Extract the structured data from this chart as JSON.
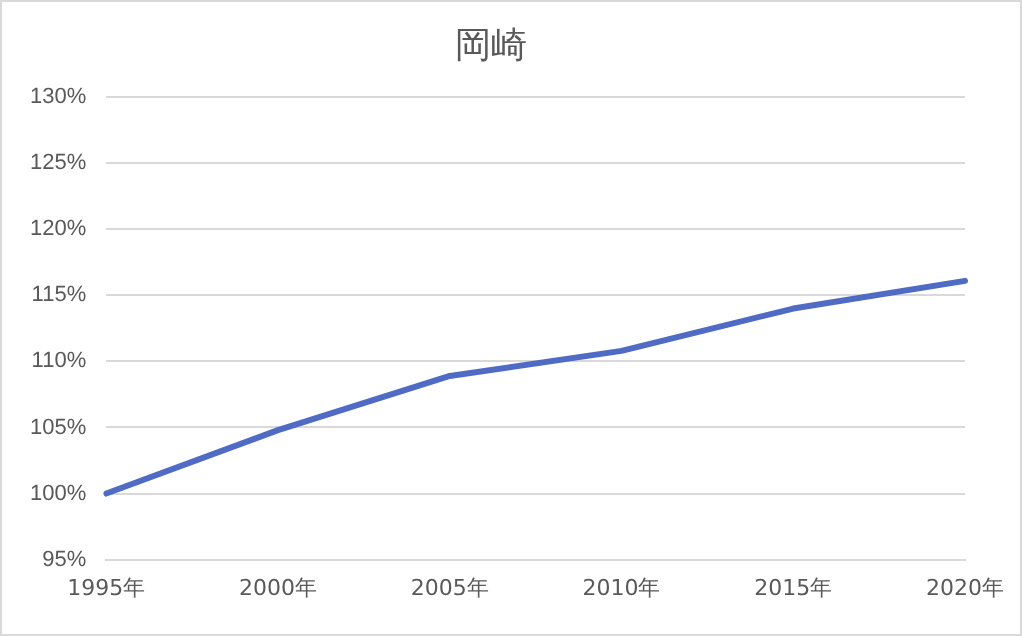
{
  "chart_data": {
    "type": "line",
    "title": "岡崎",
    "categories": [
      "1995年",
      "2000年",
      "2005年",
      "2010年",
      "2015年",
      "2020年"
    ],
    "series": [
      {
        "color": "#4f6bc4",
        "values": [
          100,
          104.8,
          108.9,
          110.8,
          114,
          116.1
        ]
      }
    ],
    "ylim": [
      95,
      130
    ],
    "yticks": [
      {
        "value": 95,
        "label": "95%"
      },
      {
        "value": 100,
        "label": "100%"
      },
      {
        "value": 105,
        "label": "105%"
      },
      {
        "value": 110,
        "label": "110%"
      },
      {
        "value": 115,
        "label": "115%"
      },
      {
        "value": 120,
        "label": "120%"
      },
      {
        "value": 125,
        "label": "125%"
      },
      {
        "value": 130,
        "label": "130%"
      }
    ],
    "grid": "y",
    "legend": false,
    "marker": "none",
    "line_style": "solid"
  }
}
